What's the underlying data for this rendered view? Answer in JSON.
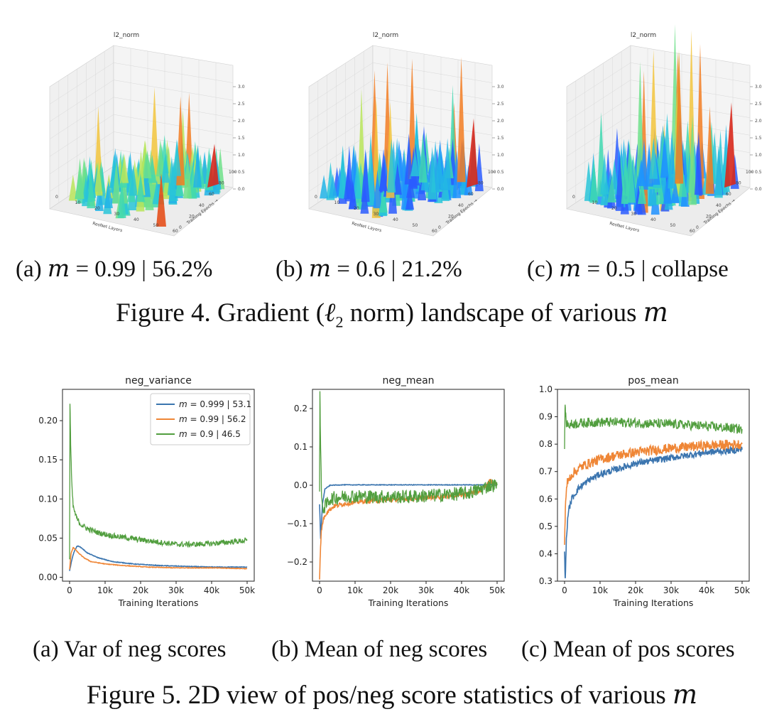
{
  "figure4": {
    "panels": [
      {
        "title": "l2_norm",
        "xlabel": "ResNet Layers",
        "ylabel": "Training Epochs →",
        "x_ticks": [
          "0",
          "10",
          "20",
          "30",
          "40",
          "50",
          "60"
        ],
        "y_ticks": [
          "0",
          "20",
          "40",
          "60",
          "80",
          "100"
        ],
        "z_ticks": [
          "0.0",
          "0.5",
          "1.0",
          "1.5",
          "2.0",
          "2.5",
          "3.0"
        ]
      },
      {
        "title": "l2_norm",
        "xlabel": "ResNet Layers",
        "ylabel": "Training Epochs →",
        "x_ticks": [
          "0",
          "10",
          "20",
          "30",
          "40",
          "50",
          "60"
        ],
        "y_ticks": [
          "0",
          "20",
          "40",
          "60",
          "80",
          "100"
        ],
        "z_ticks": [
          "0.0",
          "0.5",
          "1.0",
          "1.5",
          "2.0",
          "2.5",
          "3.0"
        ]
      },
      {
        "title": "l2_norm",
        "xlabel": "ResNet Layers",
        "ylabel": "Training Epochs →",
        "x_ticks": [
          "0",
          "10",
          "20",
          "30",
          "40",
          "50",
          "60"
        ],
        "y_ticks": [
          "0",
          "20",
          "40",
          "60",
          "80",
          "100"
        ],
        "z_ticks": [
          "0.0",
          "0.5",
          "1.0",
          "1.5",
          "2.0",
          "2.5",
          "3.0"
        ]
      }
    ],
    "subcaptions": [
      {
        "label": "(a)",
        "m": "m",
        "rest": "= 0.99 | 56.2%"
      },
      {
        "label": "(b)",
        "m": "m",
        "rest": "= 0.6 | 21.2%"
      },
      {
        "label": "(c)",
        "m": "m",
        "rest": "= 0.5 | collapse"
      }
    ],
    "caption_pre": "Figure 4. Gradient (",
    "caption_ell": "ℓ",
    "caption_sub": "2",
    "caption_mid": " norm) landscape of various ",
    "caption_m": "m"
  },
  "figure5": {
    "subcaptions": [
      "(a)  Var of neg scores",
      "(b)  Mean of neg scores",
      "(c)  Mean of pos scores"
    ],
    "caption_pre": "Figure 5. 2D view of pos/neg score statistics of various ",
    "caption_m": "m"
  },
  "colors": {
    "blue": "#3b75af",
    "orange": "#ef8636",
    "green": "#519e3e"
  },
  "chart_data": [
    {
      "type": "line",
      "title": "neg_variance",
      "xlabel": "Training Iterations",
      "ylabel": "",
      "xlim": [
        -2000,
        52000
      ],
      "ylim": [
        -0.005,
        0.24
      ],
      "x_ticks": [
        0,
        10000,
        20000,
        30000,
        40000,
        50000
      ],
      "x_tick_labels": [
        "0",
        "10k",
        "20k",
        "30k",
        "40k",
        "50k"
      ],
      "y_ticks": [
        0.0,
        0.05,
        0.1,
        0.15,
        0.2
      ],
      "y_tick_labels": [
        "0.00",
        "0.05",
        "0.10",
        "0.15",
        "0.20"
      ],
      "legend": "top-right",
      "series": [
        {
          "name": "m = 0.999 | 53.1",
          "color": "#3b75af",
          "noise": 0.0004,
          "x": [
            0,
            500,
            1200,
            2000,
            2500,
            3500,
            5000,
            8000,
            12000,
            18000,
            25000,
            32000,
            40000,
            50000
          ],
          "y": [
            0.008,
            0.02,
            0.032,
            0.039,
            0.04,
            0.037,
            0.031,
            0.025,
            0.02,
            0.017,
            0.015,
            0.014,
            0.013,
            0.013
          ]
        },
        {
          "name": "m = 0.99 | 56.2",
          "color": "#ef8636",
          "noise": 0.0004,
          "x": [
            0,
            400,
            1000,
            1500,
            2500,
            4000,
            6000,
            10000,
            15000,
            22000,
            30000,
            40000,
            50000
          ],
          "y": [
            0.01,
            0.03,
            0.038,
            0.036,
            0.031,
            0.025,
            0.02,
            0.017,
            0.015,
            0.013,
            0.012,
            0.012,
            0.011
          ]
        },
        {
          "name": "m = 0.9 | 46.5",
          "color": "#519e3e",
          "noise": 0.0035,
          "x": [
            0,
            100,
            300,
            600,
            1000,
            2000,
            3000,
            5000,
            8000,
            12000,
            18000,
            25000,
            30000,
            35000,
            40000,
            45000,
            50000
          ],
          "y": [
            0.02,
            0.225,
            0.17,
            0.12,
            0.09,
            0.075,
            0.068,
            0.062,
            0.057,
            0.053,
            0.049,
            0.045,
            0.042,
            0.042,
            0.043,
            0.045,
            0.047
          ]
        }
      ]
    },
    {
      "type": "line",
      "title": "neg_mean",
      "xlabel": "Training Iterations",
      "ylabel": "",
      "xlim": [
        -2000,
        52000
      ],
      "ylim": [
        -0.25,
        0.25
      ],
      "x_ticks": [
        0,
        10000,
        20000,
        30000,
        40000,
        50000
      ],
      "x_tick_labels": [
        "0",
        "10k",
        "20k",
        "30k",
        "40k",
        "50k"
      ],
      "y_ticks": [
        -0.2,
        -0.1,
        0.0,
        0.1,
        0.2
      ],
      "y_tick_labels": [
        "−0.2",
        "−0.1",
        "0.0",
        "0.1",
        "0.2"
      ],
      "series": [
        {
          "name": "m = 0.999 | 53.1",
          "color": "#3b75af",
          "noise": 0.0008,
          "x": [
            0,
            300,
            800,
            1500,
            3000,
            6000,
            10000,
            20000,
            30000,
            40000,
            46000,
            48000,
            50000
          ],
          "y": [
            -0.05,
            -0.14,
            -0.05,
            -0.01,
            0.0,
            0.001,
            0.001,
            0.001,
            0.001,
            0.001,
            0.001,
            0.002,
            0.0
          ]
        },
        {
          "name": "m = 0.99 | 56.2",
          "color": "#ef8636",
          "noise": 0.006,
          "x": [
            0,
            200,
            500,
            1000,
            2000,
            4000,
            7000,
            12000,
            20000,
            30000,
            40000,
            45000,
            47000,
            48000,
            50000
          ],
          "y": [
            -0.24,
            -0.18,
            -0.12,
            -0.09,
            -0.07,
            -0.055,
            -0.048,
            -0.042,
            -0.038,
            -0.032,
            -0.025,
            -0.015,
            0.0,
            0.012,
            0.002
          ]
        },
        {
          "name": "m = 0.9 | 46.5",
          "color": "#519e3e",
          "noise": 0.018,
          "x": [
            0,
            100,
            300,
            600,
            1200,
            3000,
            8000,
            15000,
            25000,
            35000,
            42000,
            46000,
            48000,
            50000
          ],
          "y": [
            0.0,
            0.24,
            0.1,
            -0.05,
            -0.06,
            -0.035,
            -0.028,
            -0.03,
            -0.03,
            -0.025,
            -0.02,
            -0.008,
            0.0,
            0.0
          ]
        }
      ]
    },
    {
      "type": "line",
      "title": "pos_mean",
      "xlabel": "Training Iterations",
      "ylabel": "",
      "xlim": [
        -2000,
        52000
      ],
      "ylim": [
        0.3,
        1.0
      ],
      "x_ticks": [
        0,
        10000,
        20000,
        30000,
        40000,
        50000
      ],
      "x_tick_labels": [
        "0",
        "10k",
        "20k",
        "30k",
        "40k",
        "50k"
      ],
      "y_ticks": [
        0.3,
        0.4,
        0.5,
        0.6,
        0.7,
        0.8,
        0.9,
        1.0
      ],
      "y_tick_labels": [
        "0.3",
        "0.4",
        "0.5",
        "0.6",
        "0.7",
        "0.8",
        "0.9",
        "1.0"
      ],
      "series": [
        {
          "name": "m = 0.999 | 53.1",
          "color": "#3b75af",
          "noise": 0.012,
          "x": [
            0,
            200,
            500,
            1000,
            2000,
            4000,
            7000,
            10000,
            15000,
            20000,
            30000,
            40000,
            50000
          ],
          "y": [
            0.4,
            0.3,
            0.45,
            0.55,
            0.6,
            0.64,
            0.67,
            0.69,
            0.71,
            0.73,
            0.75,
            0.77,
            0.78
          ]
        },
        {
          "name": "m = 0.99 | 56.2",
          "color": "#ef8636",
          "noise": 0.018,
          "x": [
            0,
            300,
            800,
            2000,
            5000,
            10000,
            15000,
            20000,
            30000,
            40000,
            50000
          ],
          "y": [
            0.45,
            0.6,
            0.66,
            0.69,
            0.72,
            0.745,
            0.76,
            0.77,
            0.785,
            0.795,
            0.8
          ]
        },
        {
          "name": "m = 0.9 | 46.5",
          "color": "#519e3e",
          "noise": 0.018,
          "x": [
            0,
            150,
            400,
            1000,
            3000,
            8000,
            15000,
            25000,
            35000,
            45000,
            50000
          ],
          "y": [
            0.8,
            0.95,
            0.88,
            0.87,
            0.875,
            0.88,
            0.88,
            0.875,
            0.87,
            0.86,
            0.855
          ]
        }
      ]
    }
  ]
}
